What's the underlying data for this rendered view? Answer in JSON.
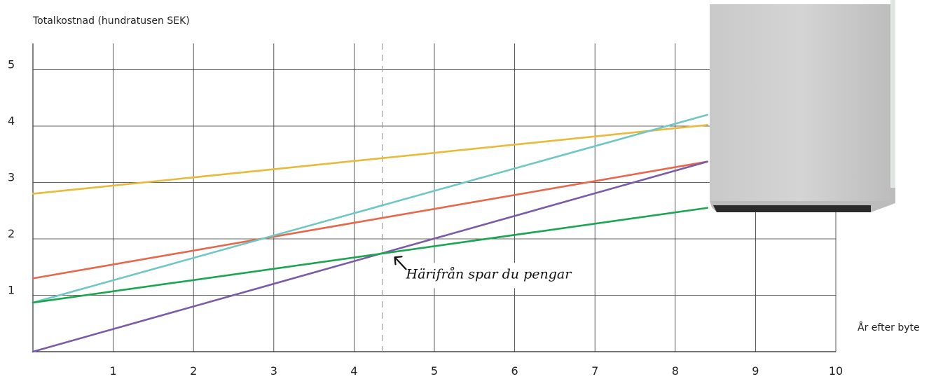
{
  "chart_data": {
    "type": "line",
    "ylabel": "Totalkostnad (hundratusen SEK)",
    "xlabel": "År efter byte",
    "xlim": [
      0,
      10
    ],
    "ylim": [
      0,
      5.5
    ],
    "x_ticks": [
      1,
      2,
      3,
      4,
      5,
      6,
      7,
      8,
      9,
      10
    ],
    "y_ticks": [
      1,
      2,
      3,
      4,
      5
    ],
    "grid": true,
    "series": [
      {
        "color": "#e8b93a",
        "x": [
          0,
          8.4
        ],
        "y": [
          2.8,
          4.02
        ]
      },
      {
        "color": "#e8674a",
        "x": [
          0,
          8.4
        ],
        "y": [
          1.3,
          3.37
        ]
      },
      {
        "color": "#6fc7c5",
        "x": [
          0,
          8.4
        ],
        "y": [
          0.87,
          4.2
        ]
      },
      {
        "color": "#7a5ba8",
        "x": [
          0,
          8.4
        ],
        "y": [
          0.0,
          3.37
        ]
      },
      {
        "color": "#1aa551",
        "x": [
          0,
          8.4
        ],
        "y": [
          0.87,
          2.55
        ]
      }
    ],
    "reference_line": {
      "x": 4.35,
      "style": "dashed",
      "color": "#999999"
    },
    "annotation": {
      "text": "Härifrån spar du pengar",
      "x": 4.35,
      "y": 1.4
    }
  }
}
